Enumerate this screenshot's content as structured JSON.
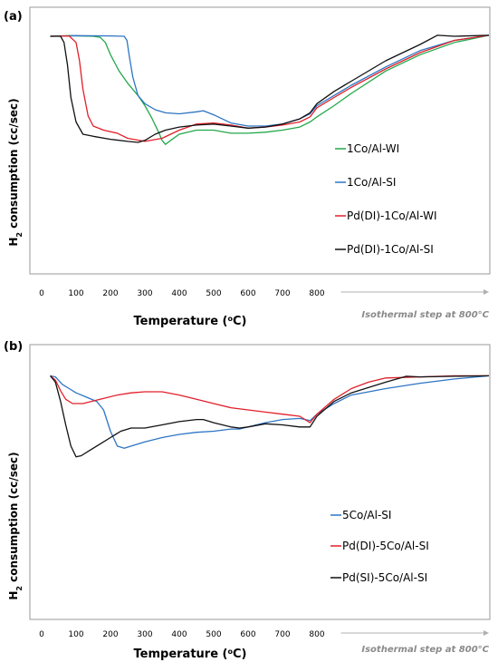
{
  "chart_data": [
    {
      "panel_label": "(a)",
      "type": "line",
      "xlabel_main": "Temperature (",
      "xlabel_sup": "o",
      "xlabel_end": "C)",
      "ylabel_pre": "H",
      "ylabel_sub": "2",
      "ylabel_post": " consumption (cc/sec)",
      "xlim": [
        0,
        1300
      ],
      "ylim": [
        0,
        1
      ],
      "x_ticks": [
        "0",
        "100",
        "200",
        "300",
        "400",
        "500",
        "600",
        "700",
        "800"
      ],
      "isothermal_label": "Isothermal step at 800°C",
      "isothermal_range": [
        870,
        1300
      ],
      "legend_position": "right",
      "series": [
        {
          "name": "1Co/Al-WI",
          "color": "#22a84a",
          "x": [
            25,
            80,
            150,
            170,
            185,
            200,
            225,
            250,
            280,
            300,
            320,
            340,
            350,
            360,
            375,
            400,
            450,
            500,
            550,
            600,
            650,
            700,
            750,
            780,
            800,
            850,
            900,
            1000,
            1100,
            1200,
            1300
          ],
          "y": [
            0.96,
            0.963,
            0.96,
            0.955,
            0.93,
            0.87,
            0.79,
            0.73,
            0.67,
            0.62,
            0.56,
            0.49,
            0.45,
            0.43,
            0.45,
            0.48,
            0.5,
            0.5,
            0.485,
            0.485,
            0.49,
            0.5,
            0.515,
            0.54,
            0.565,
            0.62,
            0.68,
            0.79,
            0.87,
            0.93,
            0.965
          ]
        },
        {
          "name": "1Co/Al-SI",
          "color": "#2e75c4",
          "x": [
            25,
            100,
            200,
            240,
            248,
            255,
            265,
            280,
            300,
            330,
            360,
            400,
            450,
            470,
            500,
            550,
            600,
            650,
            700,
            750,
            780,
            800,
            850,
            900,
            1000,
            1100,
            1200,
            1300
          ],
          "y": [
            0.96,
            0.963,
            0.962,
            0.96,
            0.94,
            0.86,
            0.76,
            0.67,
            0.63,
            0.6,
            0.585,
            0.58,
            0.59,
            0.595,
            0.575,
            0.535,
            0.52,
            0.52,
            0.53,
            0.555,
            0.58,
            0.62,
            0.67,
            0.72,
            0.81,
            0.89,
            0.94,
            0.965
          ]
        },
        {
          "name": "Pd(DI)-1Co/Al-WI",
          "color": "#e0202a",
          "x": [
            25,
            80,
            100,
            110,
            120,
            135,
            150,
            180,
            220,
            250,
            300,
            350,
            400,
            450,
            500,
            550,
            600,
            650,
            700,
            750,
            780,
            800,
            850,
            900,
            1000,
            1100,
            1200,
            1300
          ],
          "y": [
            0.96,
            0.962,
            0.93,
            0.84,
            0.7,
            0.57,
            0.52,
            0.5,
            0.485,
            0.46,
            0.445,
            0.46,
            0.5,
            0.53,
            0.535,
            0.525,
            0.51,
            0.515,
            0.525,
            0.54,
            0.565,
            0.61,
            0.66,
            0.71,
            0.8,
            0.88,
            0.94,
            0.965
          ]
        },
        {
          "name": "Pd(DI)-1Co/Al-SI",
          "color": "#111111",
          "x": [
            25,
            55,
            65,
            75,
            85,
            100,
            120,
            150,
            200,
            250,
            280,
            300,
            330,
            360,
            400,
            450,
            500,
            550,
            600,
            650,
            700,
            750,
            780,
            800,
            850,
            900,
            1000,
            1100,
            1150,
            1200,
            1300
          ],
          "y": [
            0.96,
            0.96,
            0.93,
            0.82,
            0.66,
            0.54,
            0.48,
            0.47,
            0.455,
            0.445,
            0.44,
            0.45,
            0.48,
            0.5,
            0.515,
            0.525,
            0.53,
            0.52,
            0.51,
            0.515,
            0.53,
            0.555,
            0.585,
            0.63,
            0.69,
            0.74,
            0.84,
            0.92,
            0.965,
            0.96,
            0.965
          ]
        }
      ]
    },
    {
      "panel_label": "(b)",
      "type": "line",
      "xlabel_main": "Temperature (",
      "xlabel_sup": "o",
      "xlabel_end": "C)",
      "ylabel_pre": "H",
      "ylabel_sub": "2",
      "ylabel_post": " consumption (cc/sec)",
      "xlim": [
        0,
        1300
      ],
      "ylim": [
        0,
        1
      ],
      "x_ticks": [
        "0",
        "100",
        "200",
        "300",
        "400",
        "500",
        "600",
        "700",
        "800"
      ],
      "isothermal_label": "Isothermal step at 800°C",
      "isothermal_range": [
        870,
        1300
      ],
      "legend_position": "bottom-right",
      "series": [
        {
          "name": "5Co/Al-SI",
          "color": "#2e75c4",
          "x": [
            25,
            40,
            60,
            80,
            100,
            130,
            160,
            180,
            200,
            220,
            240,
            260,
            300,
            350,
            400,
            450,
            500,
            550,
            575,
            600,
            650,
            700,
            750,
            780,
            800,
            850,
            900,
            1000,
            1100,
            1200,
            1300
          ],
          "y": [
            0.96,
            0.955,
            0.92,
            0.9,
            0.88,
            0.86,
            0.84,
            0.8,
            0.7,
            0.63,
            0.62,
            0.63,
            0.65,
            0.67,
            0.685,
            0.695,
            0.7,
            0.71,
            0.71,
            0.72,
            0.74,
            0.755,
            0.76,
            0.75,
            0.78,
            0.83,
            0.87,
            0.9,
            0.925,
            0.945,
            0.96
          ]
        },
        {
          "name": "Pd(DI)-5Co/Al-SI",
          "color": "#e0202a",
          "x": [
            25,
            40,
            55,
            70,
            90,
            120,
            170,
            220,
            260,
            300,
            350,
            400,
            450,
            500,
            550,
            600,
            650,
            700,
            750,
            780,
            800,
            850,
            900,
            950,
            1000,
            1100,
            1200,
            1300
          ],
          "y": [
            0.96,
            0.94,
            0.89,
            0.85,
            0.83,
            0.83,
            0.85,
            0.87,
            0.88,
            0.885,
            0.885,
            0.87,
            0.85,
            0.83,
            0.81,
            0.8,
            0.79,
            0.78,
            0.77,
            0.74,
            0.78,
            0.85,
            0.9,
            0.93,
            0.95,
            0.955,
            0.96,
            0.96
          ]
        },
        {
          "name": "Pd(SI)-5Co/Al-SI",
          "color": "#111111",
          "x": [
            25,
            40,
            55,
            70,
            85,
            100,
            115,
            140,
            170,
            200,
            230,
            260,
            300,
            350,
            400,
            450,
            470,
            500,
            550,
            575,
            600,
            650,
            700,
            750,
            780,
            800,
            850,
            900,
            1000,
            1060,
            1100,
            1200,
            1300
          ],
          "y": [
            0.96,
            0.93,
            0.84,
            0.73,
            0.63,
            0.58,
            0.585,
            0.61,
            0.64,
            0.67,
            0.7,
            0.715,
            0.715,
            0.73,
            0.745,
            0.755,
            0.755,
            0.74,
            0.72,
            0.715,
            0.72,
            0.735,
            0.73,
            0.72,
            0.72,
            0.77,
            0.84,
            0.88,
            0.93,
            0.958,
            0.955,
            0.958,
            0.96
          ]
        }
      ]
    }
  ]
}
